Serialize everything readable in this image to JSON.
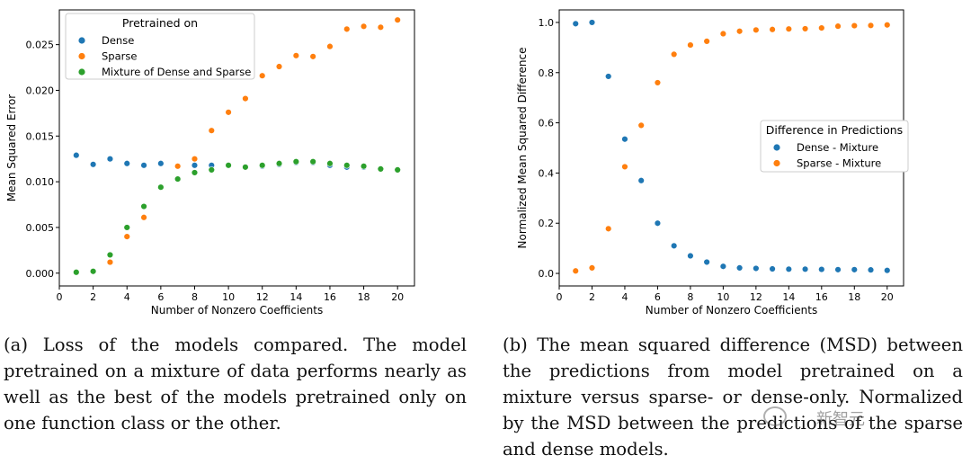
{
  "chart_data": [
    {
      "type": "scatter",
      "xlabel": "Number of Nonzero Coefficients",
      "ylabel": "Mean Squared Error",
      "xlim": [
        0,
        21
      ],
      "ylim": [
        -0.0014,
        0.0288
      ],
      "xticks": [
        0,
        2,
        4,
        6,
        8,
        10,
        12,
        14,
        16,
        18,
        20
      ],
      "xtick_labels": [
        "0",
        "2",
        "4",
        "6",
        "8",
        "10",
        "12",
        "14",
        "16",
        "18",
        "20"
      ],
      "yticks": [
        0.0,
        0.005,
        0.01,
        0.015,
        0.02,
        0.025
      ],
      "ytick_labels": [
        "0.000",
        "0.005",
        "0.010",
        "0.015",
        "0.020",
        "0.025"
      ],
      "grid": false,
      "legend": {
        "title": "Pretrained on",
        "placement": "top-left"
      },
      "series": [
        {
          "name": "Dense",
          "color": "#1f77b4",
          "x": [
            1,
            2,
            3,
            4,
            5,
            6,
            7,
            8,
            9,
            10,
            11,
            12,
            13,
            14,
            15,
            16,
            17,
            18,
            19,
            20
          ],
          "y": [
            0.0129,
            0.0119,
            0.0125,
            0.012,
            0.0118,
            0.012,
            0.0117,
            0.0118,
            0.0118,
            0.0118,
            0.0116,
            0.0117,
            0.0119,
            0.0121,
            0.0121,
            0.0118,
            0.0116,
            0.0116,
            0.0114,
            0.0113
          ]
        },
        {
          "name": "Sparse",
          "color": "#ff7f0e",
          "x": [
            1,
            2,
            3,
            4,
            5,
            6,
            7,
            8,
            9,
            10,
            11,
            12,
            13,
            14,
            15,
            16,
            17,
            18,
            19,
            20
          ],
          "y": [
            0.0001,
            0.0002,
            0.0012,
            0.004,
            0.0061,
            0.0094,
            0.0117,
            0.0125,
            0.0156,
            0.0176,
            0.0191,
            0.0216,
            0.0226,
            0.0238,
            0.0237,
            0.0248,
            0.0267,
            0.027,
            0.0269,
            0.0277
          ]
        },
        {
          "name": "Mixture of Dense and Sparse",
          "color": "#2ca02c",
          "x": [
            1,
            2,
            3,
            4,
            5,
            6,
            7,
            8,
            9,
            10,
            11,
            12,
            13,
            14,
            15,
            16,
            17,
            18,
            19,
            20
          ],
          "y": [
            0.0001,
            0.0002,
            0.002,
            0.005,
            0.0073,
            0.0094,
            0.0103,
            0.011,
            0.0113,
            0.0118,
            0.0116,
            0.0118,
            0.012,
            0.0122,
            0.0122,
            0.012,
            0.0118,
            0.0117,
            0.0114,
            0.0113
          ]
        }
      ]
    },
    {
      "type": "scatter",
      "xlabel": "Number of Nonzero Coefficients",
      "ylabel": "Normalized Mean Squared Difference",
      "xlim": [
        0,
        21
      ],
      "ylim": [
        -0.05,
        1.05
      ],
      "xticks": [
        0,
        2,
        4,
        6,
        8,
        10,
        12,
        14,
        16,
        18,
        20
      ],
      "xtick_labels": [
        "0",
        "2",
        "4",
        "6",
        "8",
        "10",
        "12",
        "14",
        "16",
        "18",
        "20"
      ],
      "yticks": [
        0.0,
        0.2,
        0.4,
        0.6,
        0.8,
        1.0
      ],
      "ytick_labels": [
        "0.0",
        "0.2",
        "0.4",
        "0.6",
        "0.8",
        "1.0"
      ],
      "grid": false,
      "legend": {
        "title": "Difference in Predictions",
        "placement": "center-right"
      },
      "series": [
        {
          "name": "Dense - Mixture",
          "color": "#1f77b4",
          "x": [
            1,
            2,
            3,
            4,
            5,
            6,
            7,
            8,
            9,
            10,
            11,
            12,
            13,
            14,
            15,
            16,
            17,
            18,
            19,
            20
          ],
          "y": [
            0.995,
            1.0,
            0.785,
            0.535,
            0.37,
            0.2,
            0.11,
            0.07,
            0.045,
            0.028,
            0.022,
            0.02,
            0.018,
            0.017,
            0.017,
            0.016,
            0.015,
            0.015,
            0.014,
            0.012
          ]
        },
        {
          "name": "Sparse - Mixture",
          "color": "#ff7f0e",
          "x": [
            1,
            2,
            3,
            4,
            5,
            6,
            7,
            8,
            9,
            10,
            11,
            12,
            13,
            14,
            15,
            16,
            17,
            18,
            19,
            20
          ],
          "y": [
            0.01,
            0.022,
            0.178,
            0.425,
            0.59,
            0.76,
            0.873,
            0.91,
            0.925,
            0.955,
            0.965,
            0.97,
            0.972,
            0.974,
            0.975,
            0.978,
            0.985,
            0.987,
            0.988,
            0.99
          ]
        }
      ]
    }
  ],
  "captions": {
    "a": "(a) Loss of the models compared. The model pretrained on a mixture of data performs nearly as well as the best of the models pretrained only on one function class or the other.",
    "b": "(b) The mean squared difference (MSD) between the predictions from model pretrained on a mixture versus sparse- or dense-only. Normalized by the MSD between the predictions of the sparse and dense models."
  },
  "watermark": "新智元"
}
